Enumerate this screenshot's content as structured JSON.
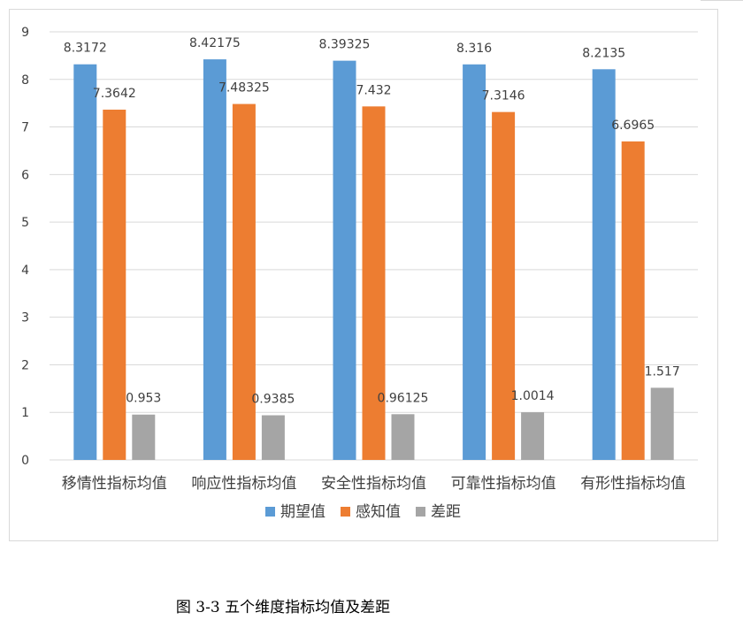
{
  "chart_data": {
    "type": "bar",
    "categories": [
      "移情性指标均值",
      "响应性指标均值",
      "安全性指标均值",
      "可靠性指标均值",
      "有形性指标均值"
    ],
    "series": [
      {
        "name": "期望值",
        "color": "#5b9bd5",
        "values": [
          8.3172,
          8.42175,
          8.39325,
          8.316,
          8.2135
        ],
        "labels": [
          "8.3172",
          "8.42175",
          "8.39325",
          "8.316",
          "8.2135"
        ]
      },
      {
        "name": "感知值",
        "color": "#ed7d31",
        "values": [
          7.3642,
          7.48325,
          7.432,
          7.3146,
          6.6965
        ],
        "labels": [
          "7.3642",
          "7.48325",
          "7.432",
          "7.3146",
          "6.6965"
        ]
      },
      {
        "name": "差距",
        "color": "#a5a5a5",
        "values": [
          0.953,
          0.9385,
          0.96125,
          1.0014,
          1.517
        ],
        "labels": [
          "0.953",
          "0.9385",
          "0.96125",
          "1.0014",
          "1.517"
        ]
      }
    ],
    "ylim": [
      0,
      9
    ],
    "yticks": [
      "0",
      "1",
      "2",
      "3",
      "4",
      "5",
      "6",
      "7",
      "8",
      "9"
    ],
    "grid": true,
    "legend_position": "bottom"
  },
  "caption": "图 3-3 五个维度指标均值及差距"
}
